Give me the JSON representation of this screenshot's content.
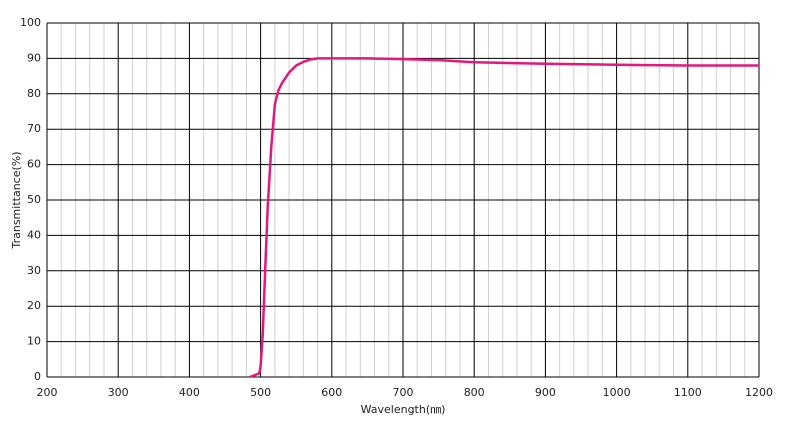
{
  "chart_data": {
    "type": "line",
    "xlabel": "Wavelength(㎚)",
    "ylabel": "Transmittance(%)",
    "x": [
      485,
      498,
      500,
      503,
      506,
      510,
      515,
      520,
      525,
      530,
      540,
      550,
      560,
      570,
      580,
      600,
      650,
      700,
      750,
      800,
      900,
      1000,
      1100,
      1200
    ],
    "series": [
      {
        "name": "Transmittance",
        "color": "#e2187b",
        "values": [
          0,
          1,
          3,
          12,
          28,
          48,
          65,
          77,
          81,
          83,
          86,
          88,
          89,
          89.7,
          90,
          90,
          90,
          89.8,
          89.5,
          88.9,
          88.5,
          88.2,
          88,
          88
        ]
      }
    ],
    "xlim": [
      200,
      1200
    ],
    "xticks": [
      200,
      300,
      400,
      500,
      600,
      700,
      800,
      900,
      1000,
      1100,
      1200
    ],
    "ylim": [
      0,
      100
    ],
    "yticks": [
      0,
      10,
      20,
      30,
      40,
      50,
      60,
      70,
      80,
      90,
      100
    ],
    "grid": true,
    "minor_grid": true
  }
}
